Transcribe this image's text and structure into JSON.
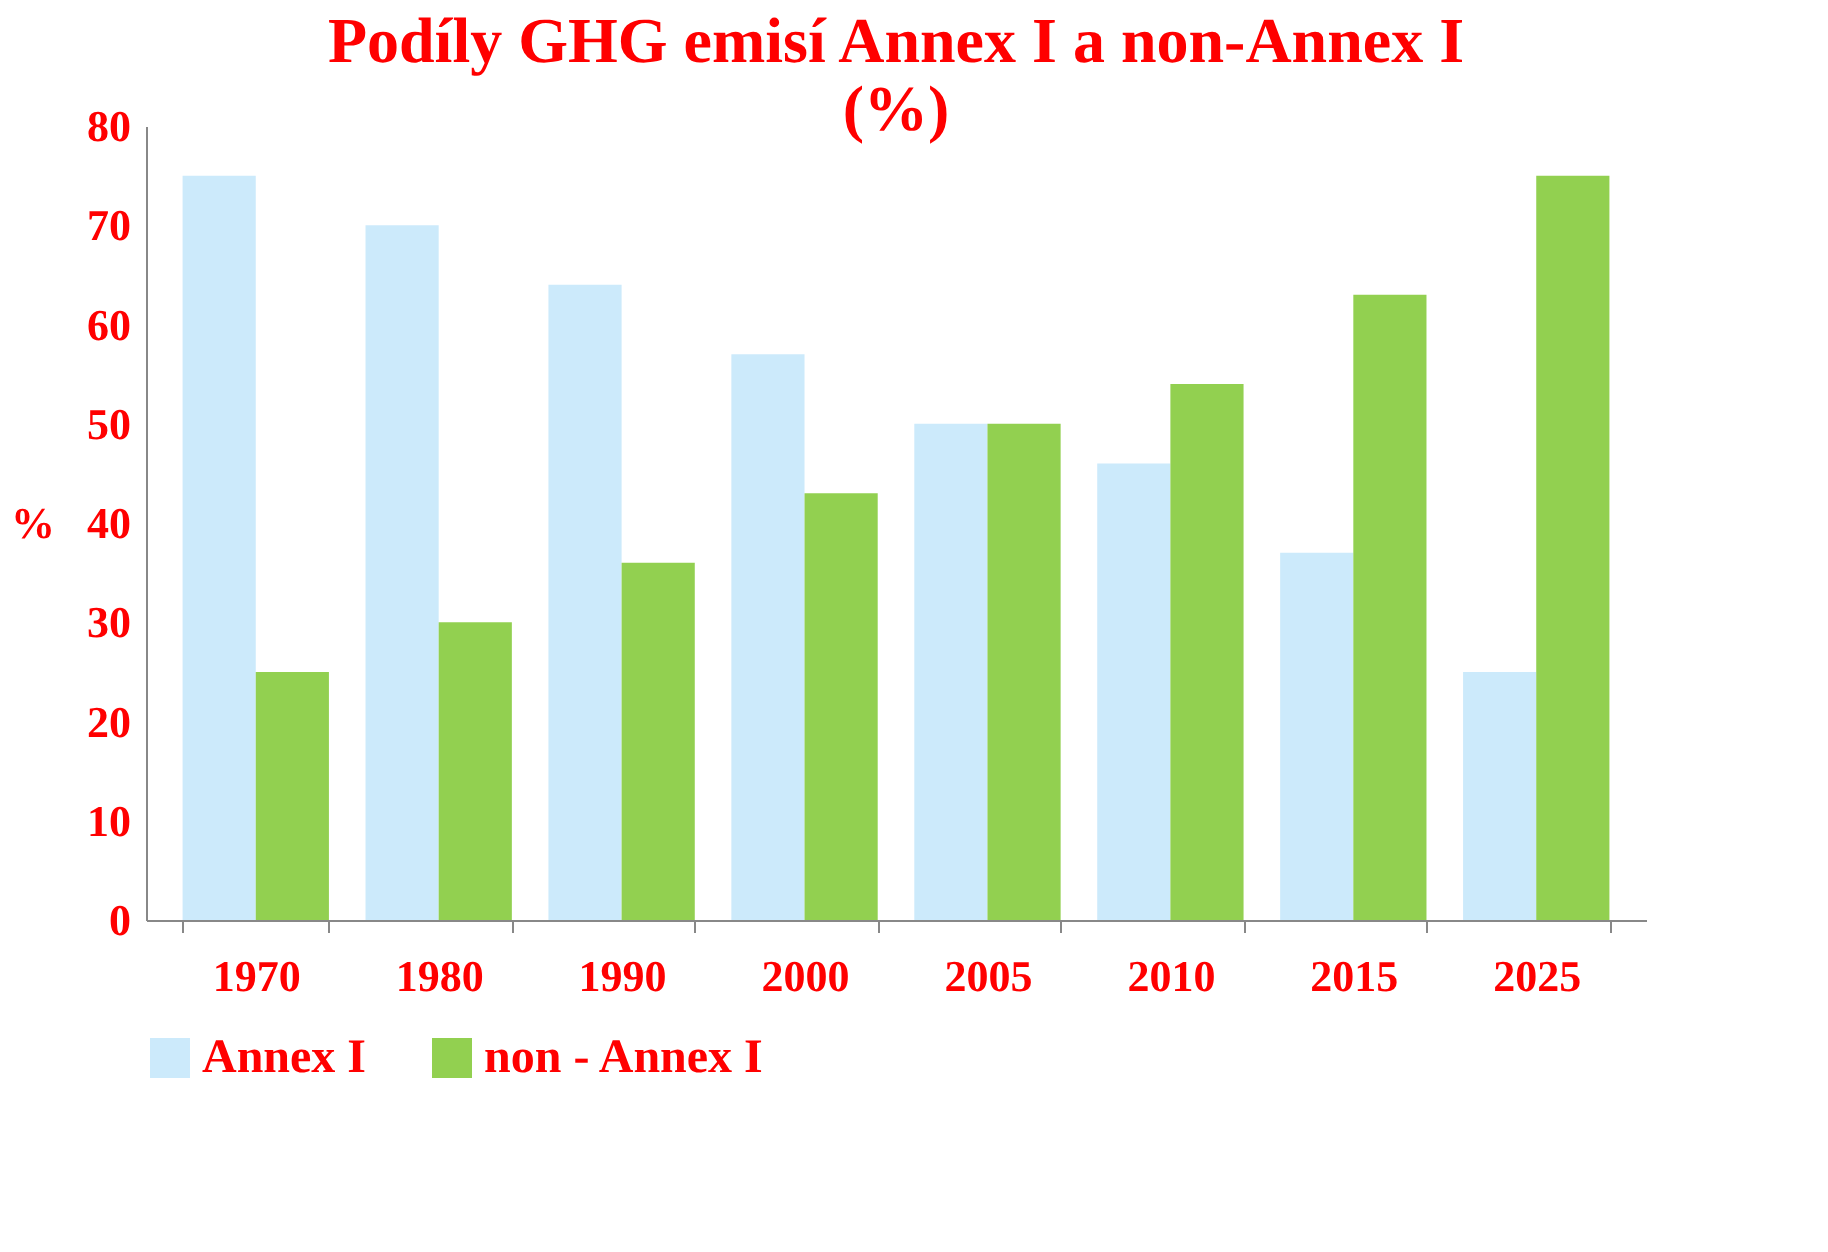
{
  "chart_data": {
    "type": "bar",
    "title": "Podíly GHG emisí Annex I a non-Annex I\n(%)",
    "ylabel": "%",
    "categories": [
      "1970",
      "1980",
      "1990",
      "2000",
      "2005",
      "2010",
      "2015",
      "2025"
    ],
    "series": [
      {
        "name": "Annex I",
        "color": "#cceafb",
        "values": [
          75,
          70,
          64,
          57,
          50,
          46,
          37,
          25
        ]
      },
      {
        "name": "non - Annex I",
        "color": "#92d050",
        "values": [
          25,
          30,
          36,
          43,
          50,
          54,
          63,
          75
        ]
      }
    ],
    "ylim": [
      0,
      80
    ],
    "yticks": [
      0,
      10,
      20,
      30,
      40,
      50,
      60,
      70,
      80
    ],
    "grid": false,
    "legend": "bottom"
  }
}
